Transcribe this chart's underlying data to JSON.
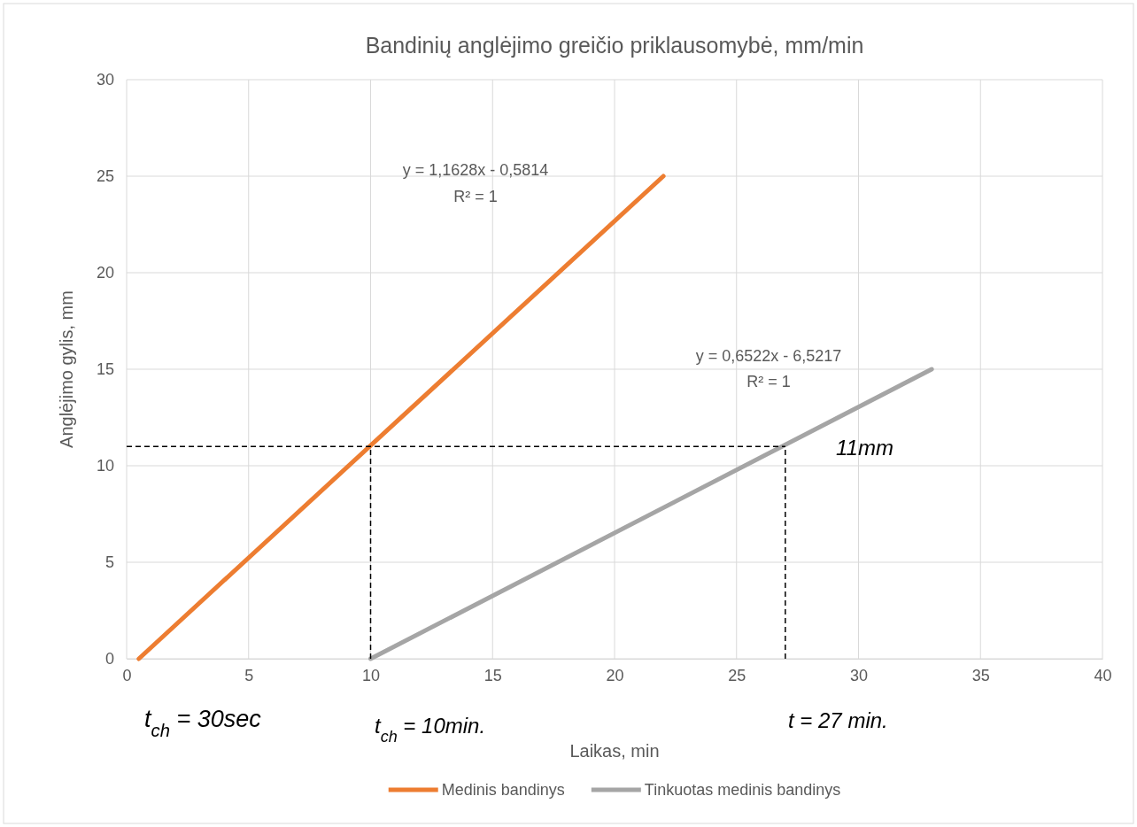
{
  "chart_data": {
    "type": "line",
    "title": "Bandinių anglėjimo greičio priklausomybė, mm/min",
    "xlabel": "Laikas, min",
    "ylabel": "Anglėjimo gylis, mm",
    "xlim": [
      0,
      40
    ],
    "xticks": [
      0,
      5,
      10,
      15,
      20,
      25,
      30,
      35,
      40
    ],
    "ylim": [
      0,
      30
    ],
    "yticks": [
      0,
      5,
      10,
      15,
      20,
      25,
      30
    ],
    "grid": true,
    "legend": "bottom",
    "line_style": "solid",
    "series": [
      {
        "name": "Medinis bandinys",
        "color": "#ed7d31",
        "x": [
          0.5,
          22
        ],
        "values": [
          0,
          25
        ]
      },
      {
        "name": "Tinkuotas medinis bandinys",
        "color": "#a5a5a5",
        "x": [
          10,
          33
        ],
        "values": [
          0,
          15
        ]
      },
      {
        "color": "#000000",
        "line_style": "dashed",
        "x": [
          0,
          27
        ],
        "values": [
          11,
          11
        ]
      },
      {
        "color": "#000000",
        "line_style": "dashed",
        "x": [
          10,
          10
        ],
        "values": [
          0,
          11
        ]
      },
      {
        "color": "#000000",
        "line_style": "dashed",
        "x": [
          27,
          27
        ],
        "values": [
          0,
          11
        ]
      }
    ],
    "annotations": [
      "y = 1,1628x - 0,5814",
      "R² = 1",
      "y = 0,6522x - 6,5217",
      "R² = 1",
      "11mm",
      "t$_{ch}$ = 30sec",
      "t$_{ch}$ = 10min.",
      "t = 27 min."
    ]
  }
}
